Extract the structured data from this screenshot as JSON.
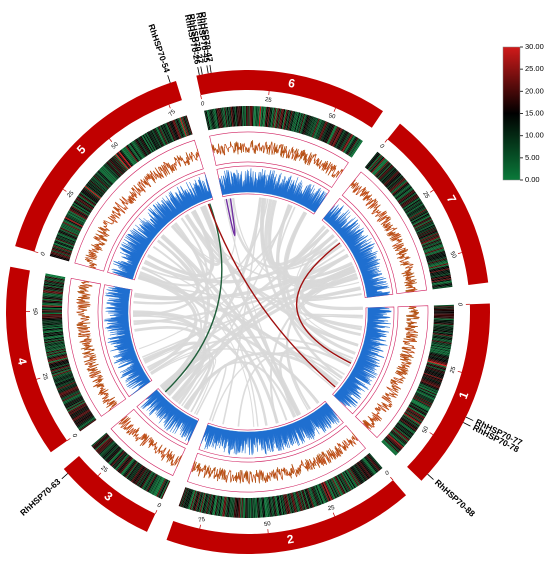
{
  "chart_data": {
    "type": "circos",
    "chromosomes": [
      "1",
      "2",
      "3",
      "4",
      "5",
      "6",
      "7"
    ],
    "lengths": [
      65,
      85,
      35,
      65,
      80,
      65,
      62
    ],
    "color": "#c00000",
    "position_ticks": [
      0,
      25,
      50,
      75
    ],
    "genes": [
      {
        "name": "RhHSP70-77",
        "chromosome": "1",
        "position": 39
      },
      {
        "name": "RhHSP70-78",
        "chromosome": "1",
        "position": 41
      },
      {
        "name": "RhHSP70-88",
        "chromosome": "1",
        "position": 62
      },
      {
        "name": "RhHSP70-63",
        "chromosome": "3",
        "position": 33
      },
      {
        "name": "RhHSP70-54",
        "chromosome": "5",
        "position": 78
      },
      {
        "name": "RhHSP70-26",
        "chromosome": "6",
        "position": 1
      },
      {
        "name": "RhHSP70-27",
        "chromosome": "6",
        "position": 2
      },
      {
        "name": "RhHSP70-45",
        "chromosome": "6",
        "position": 4
      },
      {
        "name": "RhHSP70-47",
        "chromosome": "6",
        "position": 5
      }
    ],
    "links": [
      {
        "from": [
          "6",
          2
        ],
        "to": [
          "6",
          5
        ],
        "color": "#7030a0"
      },
      {
        "from": [
          "5",
          77
        ],
        "to": [
          "3",
          30
        ],
        "color": "#1f5e3a"
      },
      {
        "from": [
          "5",
          76
        ],
        "to": [
          "1",
          60
        ],
        "color": "#a01010"
      },
      {
        "from": [
          "7",
          20
        ],
        "to": [
          "1",
          40
        ],
        "color": "#a01010"
      }
    ],
    "colorbar": {
      "clim": [
        0,
        30
      ],
      "colors": [
        "#0a7a3a",
        "#000000",
        "#d11a1a"
      ],
      "ticks": [
        {
          "value": 0,
          "label": "0.00"
        },
        {
          "value": 5,
          "label": "5.00"
        },
        {
          "value": 10,
          "label": "10.00"
        },
        {
          "value": 15,
          "label": "15.00"
        },
        {
          "value": 20,
          "label": "20.00"
        },
        {
          "value": 25,
          "label": "25.00"
        },
        {
          "value": 30,
          "label": "30.00"
        }
      ]
    }
  }
}
